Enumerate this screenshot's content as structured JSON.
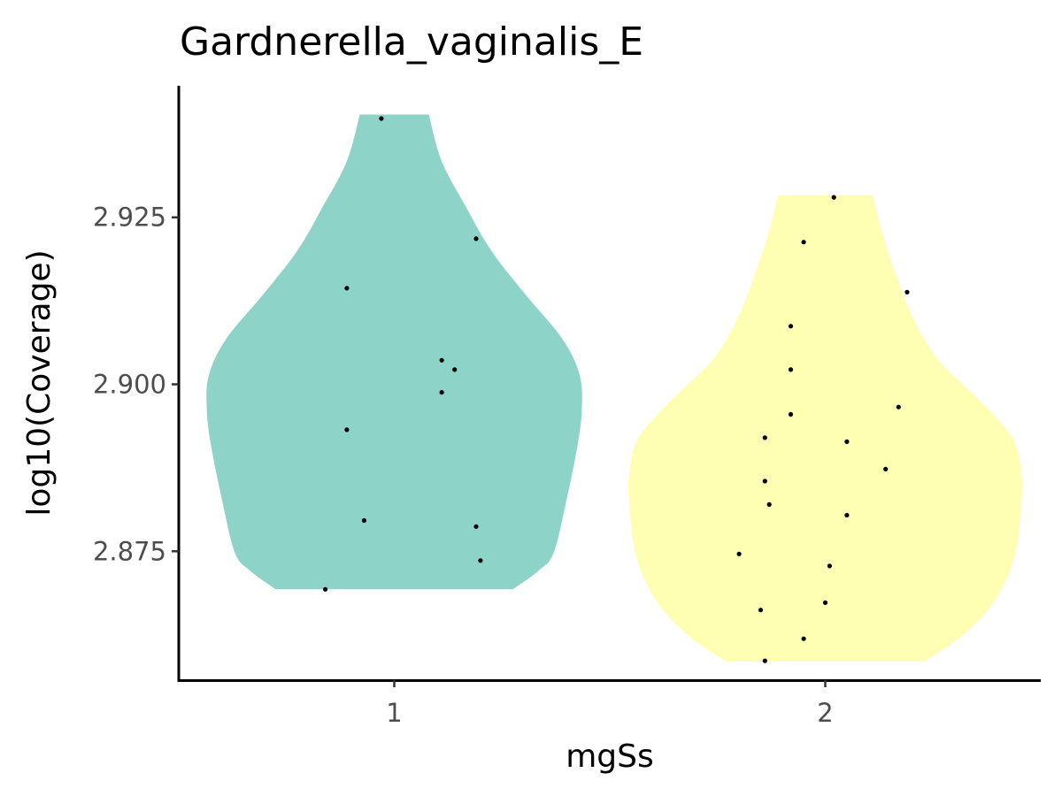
{
  "chart_data": {
    "type": "violin",
    "title": "Gardnerella_vaginalis_E",
    "xlabel": "mgSs",
    "ylabel": "log10(Coverage)",
    "categories": [
      "1",
      "2"
    ],
    "y_ticks": [
      "2.875",
      "2.900",
      "2.925"
    ],
    "ylim": [
      2.8557,
      2.9447
    ],
    "grid": false,
    "legend": "none",
    "series": [
      {
        "category": "1",
        "color": "#8DD3C7",
        "points": [
          {
            "x_offset": -0.03,
            "y": 2.9398
          },
          {
            "x_offset": 0.19,
            "y": 2.9218
          },
          {
            "x_offset": -0.11,
            "y": 2.9144
          },
          {
            "x_offset": 0.11,
            "y": 2.9036
          },
          {
            "x_offset": 0.14,
            "y": 2.9022
          },
          {
            "x_offset": 0.11,
            "y": 2.8988
          },
          {
            "x_offset": -0.11,
            "y": 2.8932
          },
          {
            "x_offset": -0.07,
            "y": 2.8796
          },
          {
            "x_offset": 0.19,
            "y": 2.8787
          },
          {
            "x_offset": 0.2,
            "y": 2.8736
          },
          {
            "x_offset": -0.16,
            "y": 2.8693
          }
        ],
        "violin": {
          "y_min": 2.8693,
          "y_max": 2.9404,
          "profile": [
            {
              "y": 2.8693,
              "w": 0.55
            },
            {
              "y": 2.8721,
              "w": 0.67
            },
            {
              "y": 2.8748,
              "w": 0.74
            },
            {
              "y": 2.8828,
              "w": 0.8
            },
            {
              "y": 2.8908,
              "w": 0.85
            },
            {
              "y": 2.8961,
              "w": 0.87
            },
            {
              "y": 2.9014,
              "w": 0.86
            },
            {
              "y": 2.9068,
              "w": 0.78
            },
            {
              "y": 2.9134,
              "w": 0.61
            },
            {
              "y": 2.92,
              "w": 0.45
            },
            {
              "y": 2.9267,
              "w": 0.33
            },
            {
              "y": 2.9334,
              "w": 0.22
            },
            {
              "y": 2.9404,
              "w": 0.16
            }
          ]
        }
      },
      {
        "category": "2",
        "color": "#FFFFB3",
        "points": [
          {
            "x_offset": 0.02,
            "y": 2.928
          },
          {
            "x_offset": -0.05,
            "y": 2.9213
          },
          {
            "x_offset": 0.19,
            "y": 2.9138
          },
          {
            "x_offset": -0.08,
            "y": 2.9087
          },
          {
            "x_offset": -0.08,
            "y": 2.9022
          },
          {
            "x_offset": 0.17,
            "y": 2.8966
          },
          {
            "x_offset": -0.08,
            "y": 2.8955
          },
          {
            "x_offset": -0.14,
            "y": 2.892
          },
          {
            "x_offset": 0.05,
            "y": 2.8914
          },
          {
            "x_offset": 0.14,
            "y": 2.8873
          },
          {
            "x_offset": -0.14,
            "y": 2.8855
          },
          {
            "x_offset": -0.13,
            "y": 2.882
          },
          {
            "x_offset": 0.05,
            "y": 2.8804
          },
          {
            "x_offset": -0.2,
            "y": 2.8746
          },
          {
            "x_offset": 0.01,
            "y": 2.8728
          },
          {
            "x_offset": 0.0,
            "y": 2.8673
          },
          {
            "x_offset": -0.15,
            "y": 2.8662
          },
          {
            "x_offset": -0.05,
            "y": 2.8619
          },
          {
            "x_offset": -0.14,
            "y": 2.8586
          }
        ],
        "violin": {
          "y_min": 2.8585,
          "y_max": 2.9283,
          "profile": [
            {
              "y": 2.8585,
              "w": 0.46
            },
            {
              "y": 2.8625,
              "w": 0.64
            },
            {
              "y": 2.8678,
              "w": 0.79
            },
            {
              "y": 2.8745,
              "w": 0.88
            },
            {
              "y": 2.8825,
              "w": 0.91
            },
            {
              "y": 2.8865,
              "w": 0.91
            },
            {
              "y": 2.8918,
              "w": 0.87
            },
            {
              "y": 2.8971,
              "w": 0.73
            },
            {
              "y": 2.9038,
              "w": 0.52
            },
            {
              "y": 2.9104,
              "w": 0.4
            },
            {
              "y": 2.9171,
              "w": 0.32
            },
            {
              "y": 2.923,
              "w": 0.26
            },
            {
              "y": 2.9283,
              "w": 0.22
            }
          ]
        }
      }
    ]
  }
}
